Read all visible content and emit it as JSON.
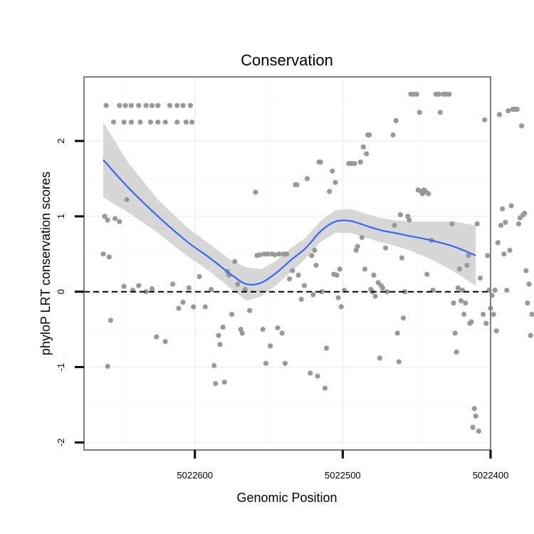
{
  "chart_data": {
    "type": "scatter",
    "title": "Conservation",
    "xlabel": "Genomic Position",
    "ylabel": "phyloP LRT conservation scores",
    "x_reversed": true,
    "xlim": [
      5022675,
      5022400
    ],
    "ylim": [
      -2.1,
      2.85
    ],
    "x_ticks": [
      5022600,
      5022500,
      5022400
    ],
    "x_tick_labels": [
      "5022600",
      "5022500",
      "5022400"
    ],
    "y_ticks": [
      -2,
      -1,
      0,
      1,
      2
    ],
    "y_tick_labels": [
      "-2",
      "-1",
      "0",
      "1",
      "2"
    ],
    "reference_line": {
      "y": 0,
      "style": "dashed"
    },
    "grid": true,
    "colors": {
      "points": "#999999",
      "smooth": "#3366FF",
      "band": "#d3d3d3",
      "frame": "#7f7f7f"
    },
    "smooth": {
      "x": [
        5022662,
        5022645,
        5022625,
        5022605,
        5022590,
        5022575,
        5022565,
        5022555,
        5022545,
        5022535,
        5022525,
        5022515,
        5022505,
        5022495,
        5022485,
        5022475,
        5022465,
        5022455,
        5022440,
        5022425,
        5022410
      ],
      "y": [
        1.75,
        1.38,
        1.0,
        0.66,
        0.45,
        0.22,
        0.1,
        0.12,
        0.25,
        0.42,
        0.58,
        0.8,
        0.93,
        0.94,
        0.88,
        0.82,
        0.78,
        0.74,
        0.68,
        0.6,
        0.48
      ],
      "lower": [
        1.25,
        1.05,
        0.78,
        0.47,
        0.27,
        0.03,
        -0.12,
        -0.06,
        0.09,
        0.26,
        0.44,
        0.66,
        0.78,
        0.78,
        0.72,
        0.66,
        0.61,
        0.55,
        0.43,
        0.27,
        0.08
      ],
      "upper": [
        2.25,
        1.71,
        1.22,
        0.85,
        0.63,
        0.41,
        0.32,
        0.3,
        0.41,
        0.58,
        0.72,
        0.94,
        1.08,
        1.1,
        1.04,
        0.98,
        0.95,
        0.93,
        0.93,
        0.93,
        0.88
      ]
    },
    "points": [
      {
        "x": 5022660,
        "y": 2.47
      },
      {
        "x": 5022651,
        "y": 2.47
      },
      {
        "x": 5022647,
        "y": 2.47
      },
      {
        "x": 5022643,
        "y": 2.47
      },
      {
        "x": 5022638,
        "y": 2.47
      },
      {
        "x": 5022633,
        "y": 2.47
      },
      {
        "x": 5022629,
        "y": 2.47
      },
      {
        "x": 5022625,
        "y": 2.47
      },
      {
        "x": 5022617,
        "y": 2.47
      },
      {
        "x": 5022612,
        "y": 2.47
      },
      {
        "x": 5022608,
        "y": 2.47
      },
      {
        "x": 5022603,
        "y": 2.47
      },
      {
        "x": 5022655,
        "y": 2.25
      },
      {
        "x": 5022648,
        "y": 2.25
      },
      {
        "x": 5022643,
        "y": 2.25
      },
      {
        "x": 5022637,
        "y": 2.25
      },
      {
        "x": 5022630,
        "y": 2.25
      },
      {
        "x": 5022625,
        "y": 2.25
      },
      {
        "x": 5022620,
        "y": 2.25
      },
      {
        "x": 5022612,
        "y": 2.25
      },
      {
        "x": 5022606,
        "y": 2.25
      },
      {
        "x": 5022602,
        "y": 2.25
      },
      {
        "x": 5022661,
        "y": 1.0
      },
      {
        "x": 5022659,
        "y": 0.95
      },
      {
        "x": 5022654,
        "y": 0.97
      },
      {
        "x": 5022651,
        "y": 0.93
      },
      {
        "x": 5022646,
        "y": 1.22
      },
      {
        "x": 5022662,
        "y": 0.5
      },
      {
        "x": 5022658,
        "y": 0.46
      },
      {
        "x": 5022657,
        "y": -0.38
      },
      {
        "x": 5022659,
        "y": -0.99
      },
      {
        "x": 5022648,
        "y": 0.07
      },
      {
        "x": 5022642,
        "y": 0.02
      },
      {
        "x": 5022638,
        "y": 0.08
      },
      {
        "x": 5022633,
        "y": 0.0
      },
      {
        "x": 5022629,
        "y": 0.04
      },
      {
        "x": 5022626,
        "y": -0.6
      },
      {
        "x": 5022620,
        "y": -0.66
      },
      {
        "x": 5022615,
        "y": 0.1
      },
      {
        "x": 5022611,
        "y": -0.22
      },
      {
        "x": 5022608,
        "y": -0.14
      },
      {
        "x": 5022604,
        "y": 0.05
      },
      {
        "x": 5022601,
        "y": -0.2
      },
      {
        "x": 5022597,
        "y": 0.2
      },
      {
        "x": 5022593,
        "y": -0.2
      },
      {
        "x": 5022589,
        "y": 0.03
      },
      {
        "x": 5022587,
        "y": -0.98
      },
      {
        "x": 5022586,
        "y": -1.22
      },
      {
        "x": 5022584,
        "y": -0.58
      },
      {
        "x": 5022583,
        "y": -0.7
      },
      {
        "x": 5022581,
        "y": -0.47
      },
      {
        "x": 5022580,
        "y": -1.2
      },
      {
        "x": 5022578,
        "y": 0.27
      },
      {
        "x": 5022577,
        "y": 0.22
      },
      {
        "x": 5022575,
        "y": -0.3
      },
      {
        "x": 5022573,
        "y": 0.4
      },
      {
        "x": 5022571,
        "y": 0.1
      },
      {
        "x": 5022569,
        "y": -0.5
      },
      {
        "x": 5022568,
        "y": -0.55
      },
      {
        "x": 5022566,
        "y": 0.03
      },
      {
        "x": 5022563,
        "y": -0.25
      },
      {
        "x": 5022559,
        "y": 1.32
      },
      {
        "x": 5022558,
        "y": 0.48
      },
      {
        "x": 5022556,
        "y": 0.49
      },
      {
        "x": 5022554,
        "y": -0.5
      },
      {
        "x": 5022552,
        "y": -0.95
      },
      {
        "x": 5022553,
        "y": 0.5
      },
      {
        "x": 5022551,
        "y": 0.5
      },
      {
        "x": 5022549,
        "y": -0.72
      },
      {
        "x": 5022548,
        "y": 0.5
      },
      {
        "x": 5022546,
        "y": 0.49
      },
      {
        "x": 5022544,
        "y": -0.48
      },
      {
        "x": 5022543,
        "y": 0.5
      },
      {
        "x": 5022541,
        "y": -0.55
      },
      {
        "x": 5022540,
        "y": 0.5
      },
      {
        "x": 5022539,
        "y": -0.95
      },
      {
        "x": 5022538,
        "y": 0.5
      },
      {
        "x": 5022536,
        "y": 0.17
      },
      {
        "x": 5022534,
        "y": 0.28
      },
      {
        "x": 5022532,
        "y": 1.42
      },
      {
        "x": 5022531,
        "y": 1.42
      },
      {
        "x": 5022530,
        "y": 0.22
      },
      {
        "x": 5022528,
        "y": -0.1
      },
      {
        "x": 5022526,
        "y": 0.08
      },
      {
        "x": 5022524,
        "y": 1.5
      },
      {
        "x": 5022522,
        "y": -1.08
      },
      {
        "x": 5022521,
        "y": 0.48
      },
      {
        "x": 5022520,
        "y": -0.04
      },
      {
        "x": 5022519,
        "y": 0.55
      },
      {
        "x": 5022518,
        "y": 0.35
      },
      {
        "x": 5022517,
        "y": -1.12
      },
      {
        "x": 5022516,
        "y": 1.72
      },
      {
        "x": 5022515,
        "y": 1.72
      },
      {
        "x": 5022514,
        "y": 0.0
      },
      {
        "x": 5022512,
        "y": -1.28
      },
      {
        "x": 5022511,
        "y": -0.75
      },
      {
        "x": 5022509,
        "y": 1.33
      },
      {
        "x": 5022507,
        "y": 1.6
      },
      {
        "x": 5022506,
        "y": 0.23
      },
      {
        "x": 5022505,
        "y": 1.45
      },
      {
        "x": 5022504,
        "y": 0.22
      },
      {
        "x": 5022503,
        "y": -0.08
      },
      {
        "x": 5022502,
        "y": 0.3
      },
      {
        "x": 5022501,
        "y": -0.2
      },
      {
        "x": 5022499,
        "y": 0.02
      },
      {
        "x": 5022496,
        "y": 1.7
      },
      {
        "x": 5022494,
        "y": 1.7
      },
      {
        "x": 5022492,
        "y": 1.7
      },
      {
        "x": 5022491,
        "y": 0.55
      },
      {
        "x": 5022490,
        "y": 0.6
      },
      {
        "x": 5022488,
        "y": 1.72
      },
      {
        "x": 5022487,
        "y": 0.72
      },
      {
        "x": 5022486,
        "y": 1.92
      },
      {
        "x": 5022485,
        "y": 0.3
      },
      {
        "x": 5022484,
        "y": 1.83
      },
      {
        "x": 5022483,
        "y": 2.08
      },
      {
        "x": 5022482,
        "y": 2.08
      },
      {
        "x": 5022481,
        "y": 0.03
      },
      {
        "x": 5022480,
        "y": 0.0
      },
      {
        "x": 5022479,
        "y": 0.22
      },
      {
        "x": 5022478,
        "y": -0.06
      },
      {
        "x": 5022476,
        "y": 0.12
      },
      {
        "x": 5022475,
        "y": -0.88
      },
      {
        "x": 5022474,
        "y": 0.08
      },
      {
        "x": 5022473,
        "y": 0.05
      },
      {
        "x": 5022471,
        "y": 0.58
      },
      {
        "x": 5022470,
        "y": 0.0
      },
      {
        "x": 5022466,
        "y": 2.08
      },
      {
        "x": 5022465,
        "y": 0.88
      },
      {
        "x": 5022464,
        "y": 2.27
      },
      {
        "x": 5022463,
        "y": -0.55
      },
      {
        "x": 5022462,
        "y": -0.93
      },
      {
        "x": 5022461,
        "y": 1.02
      },
      {
        "x": 5022460,
        "y": 0.45
      },
      {
        "x": 5022459,
        "y": -0.35
      },
      {
        "x": 5022458,
        "y": 0.0
      },
      {
        "x": 5022456,
        "y": 1.0
      },
      {
        "x": 5022455,
        "y": 0.95
      },
      {
        "x": 5022454,
        "y": 2.62
      },
      {
        "x": 5022452,
        "y": 2.62
      },
      {
        "x": 5022450,
        "y": 2.62
      },
      {
        "x": 5022449,
        "y": 1.35
      },
      {
        "x": 5022448,
        "y": 2.38
      },
      {
        "x": 5022447,
        "y": 1.33
      },
      {
        "x": 5022446,
        "y": 1.3
      },
      {
        "x": 5022445,
        "y": 1.35
      },
      {
        "x": 5022444,
        "y": 1.33
      },
      {
        "x": 5022443,
        "y": 0.23
      },
      {
        "x": 5022442,
        "y": 1.3
      },
      {
        "x": 5022440,
        "y": 0.68
      },
      {
        "x": 5022439,
        "y": 0.02
      },
      {
        "x": 5022437,
        "y": 2.62
      },
      {
        "x": 5022435,
        "y": 2.62
      },
      {
        "x": 5022434,
        "y": 2.38
      },
      {
        "x": 5022432,
        "y": 2.62
      },
      {
        "x": 5022430,
        "y": 2.62
      },
      {
        "x": 5022428,
        "y": 2.62
      },
      {
        "x": 5022426,
        "y": 0.9
      },
      {
        "x": 5022425,
        "y": -0.15
      },
      {
        "x": 5022424,
        "y": -0.55
      },
      {
        "x": 5022423,
        "y": -0.8
      },
      {
        "x": 5022422,
        "y": 0.05
      },
      {
        "x": 5022421,
        "y": 0.3
      },
      {
        "x": 5022420,
        "y": -0.12
      },
      {
        "x": 5022419,
        "y": 0.02
      },
      {
        "x": 5022418,
        "y": -0.3
      },
      {
        "x": 5022417,
        "y": -0.15
      },
      {
        "x": 5022416,
        "y": 0.35
      },
      {
        "x": 5022415,
        "y": 0.48
      },
      {
        "x": 5022414,
        "y": -0.42
      },
      {
        "x": 5022413,
        "y": -0.4
      },
      {
        "x": 5022412,
        "y": -1.8
      },
      {
        "x": 5022411,
        "y": -1.55
      },
      {
        "x": 5022410,
        "y": -1.65
      },
      {
        "x": 5022409,
        "y": 0.9
      },
      {
        "x": 5022408,
        "y": -1.85
      },
      {
        "x": 5022407,
        "y": 0.18
      },
      {
        "x": 5022405,
        "y": -0.3
      },
      {
        "x": 5022404,
        "y": 2.28
      },
      {
        "x": 5022403,
        "y": -0.42
      },
      {
        "x": 5022402,
        "y": 0.48
      },
      {
        "x": 5022401,
        "y": 0.02
      },
      {
        "x": 5022400,
        "y": -0.22
      },
      {
        "x": 5022399,
        "y": -0.05
      },
      {
        "x": 5022398,
        "y": -0.3
      },
      {
        "x": 5022397,
        "y": 0.02
      },
      {
        "x": 5022396,
        "y": -0.52
      },
      {
        "x": 5022395,
        "y": 0.65
      },
      {
        "x": 5022394,
        "y": 2.35
      },
      {
        "x": 5022393,
        "y": 0.88
      },
      {
        "x": 5022392,
        "y": 1.1
      },
      {
        "x": 5022391,
        "y": 0.5
      },
      {
        "x": 5022390,
        "y": 0.92
      },
      {
        "x": 5022389,
        "y": 0.02
      },
      {
        "x": 5022388,
        "y": 2.4
      },
      {
        "x": 5022387,
        "y": 0.55
      },
      {
        "x": 5022386,
        "y": 1.14
      },
      {
        "x": 5022385,
        "y": 2.42
      },
      {
        "x": 5022384,
        "y": 2.42
      },
      {
        "x": 5022383,
        "y": 2.42
      },
      {
        "x": 5022382,
        "y": 2.42
      },
      {
        "x": 5022381,
        "y": 0.9
      },
      {
        "x": 5022380,
        "y": 0.98
      },
      {
        "x": 5022379,
        "y": 2.2
      },
      {
        "x": 5022378,
        "y": 1.02
      },
      {
        "x": 5022377,
        "y": 1.04
      },
      {
        "x": 5022376,
        "y": 0.28
      },
      {
        "x": 5022375,
        "y": -0.15
      },
      {
        "x": 5022374,
        "y": 0.1
      },
      {
        "x": 5022373,
        "y": -0.58
      },
      {
        "x": 5022372,
        "y": -0.3
      }
    ]
  }
}
